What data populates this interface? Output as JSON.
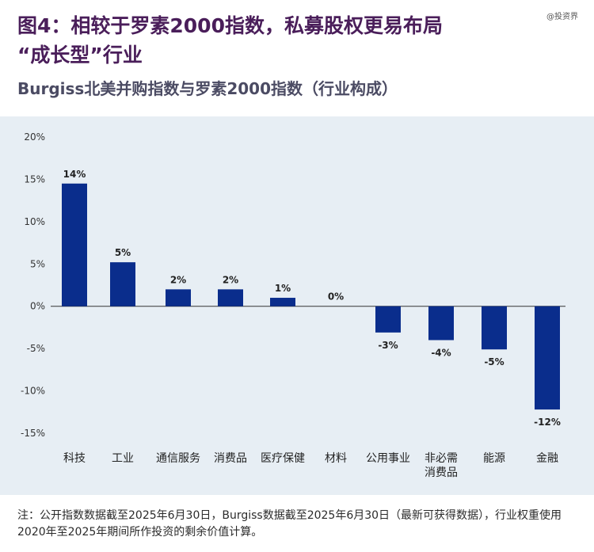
{
  "header": {
    "title_line1": "图4：相较于罗素2000指数，私募股权更易布局",
    "title_line2": "“成长型”行业",
    "watermark": "@投资界",
    "subtitle": "Burgiss北美并购指数与罗素2000指数（行业构成）"
  },
  "chart_data": {
    "type": "bar",
    "title": "Burgiss北美并购指数与罗素2000指数（行业构成）",
    "xlabel": "",
    "ylabel": "",
    "ylim": [
      -15,
      20
    ],
    "yticks": [
      20,
      15,
      10,
      5,
      0,
      -5,
      -10,
      -15
    ],
    "ytick_labels": [
      "20%",
      "15%",
      "10%",
      "5%",
      "0%",
      "-5%",
      "-10%",
      "-15%"
    ],
    "categories": [
      "科技",
      "工业",
      "通信服务",
      "消费品",
      "医疗保健",
      "材料",
      "公用事业",
      "非必需消费品",
      "能源",
      "金融"
    ],
    "category_lines": [
      [
        "科技"
      ],
      [
        "工业"
      ],
      [
        "通信服务"
      ],
      [
        "消费品"
      ],
      [
        "医疗保健"
      ],
      [
        "材料"
      ],
      [
        "公用事业"
      ],
      [
        "非必需",
        "消费品"
      ],
      [
        "能源"
      ],
      [
        "金融"
      ]
    ],
    "values": [
      14.5,
      5.2,
      2.0,
      2.0,
      1.0,
      0.0,
      -3.1,
      -4.0,
      -5.1,
      -12.2
    ],
    "value_labels": [
      "14%",
      "5%",
      "2%",
      "2%",
      "1%",
      "0%",
      "-3%",
      "-4%",
      "-5%",
      "-12%"
    ],
    "bar_color": "#0a2d8c",
    "grid": false
  },
  "note": {
    "text": "注：公开指数数据截至2025年6月30日，Burgiss数据截至2025年6月30日（最新可获得数据），行业权重使用2020年至2025年期间所作投资的剩余价值计算。"
  }
}
